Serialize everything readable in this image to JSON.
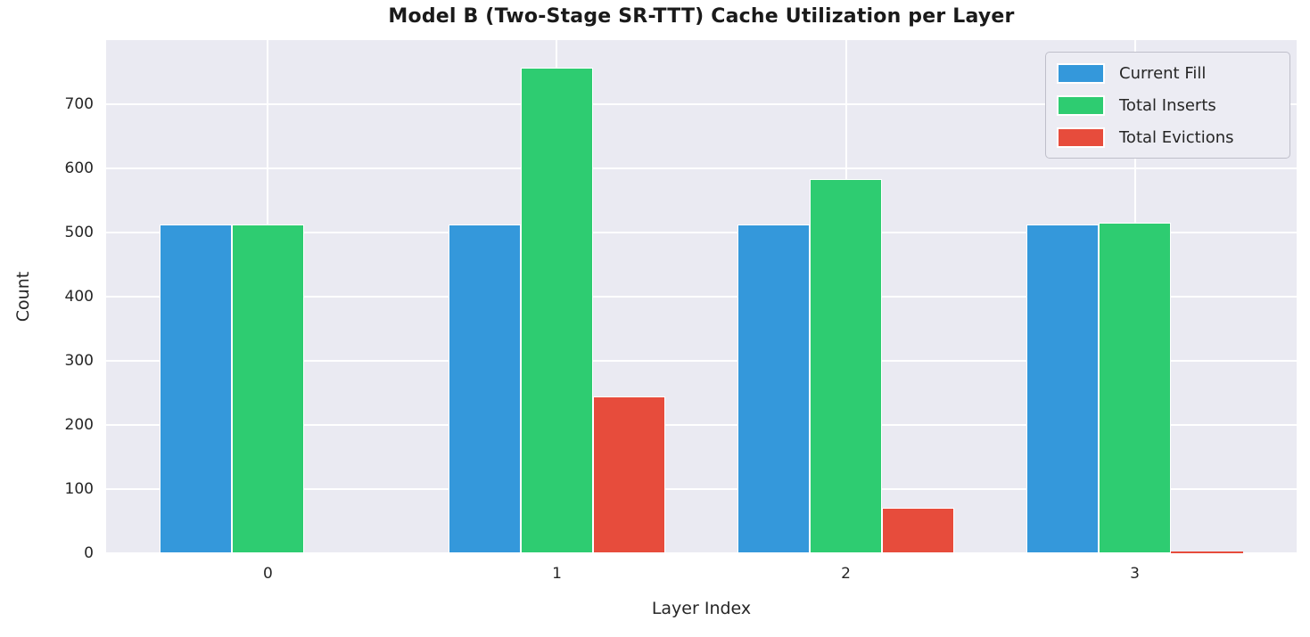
{
  "chart_data": {
    "type": "bar",
    "title": "Model B (Two-Stage SR-TTT) Cache Utilization per Layer",
    "xlabel": "Layer Index",
    "ylabel": "Count",
    "categories": [
      "0",
      "1",
      "2",
      "3"
    ],
    "series": [
      {
        "name": "Current Fill",
        "color": "#3498db",
        "values": [
          512,
          512,
          512,
          512
        ]
      },
      {
        "name": "Total Inserts",
        "color": "#2ecc71",
        "values": [
          512,
          757,
          583,
          515
        ]
      },
      {
        "name": "Total Evictions",
        "color": "#e74c3c",
        "values": [
          0,
          245,
          71,
          3
        ]
      }
    ],
    "yticks": [
      0,
      100,
      200,
      300,
      400,
      500,
      600,
      700
    ],
    "ylim": [
      0,
      800
    ],
    "grid": true,
    "legend_position": "upper right",
    "colors": {
      "plot_background": "#eaeaf2",
      "gridline": "#ffffff",
      "bar_edge": "#ffffff",
      "text": "#262626",
      "legend_background": "#ececf3",
      "legend_border": "#bfbfca"
    }
  }
}
